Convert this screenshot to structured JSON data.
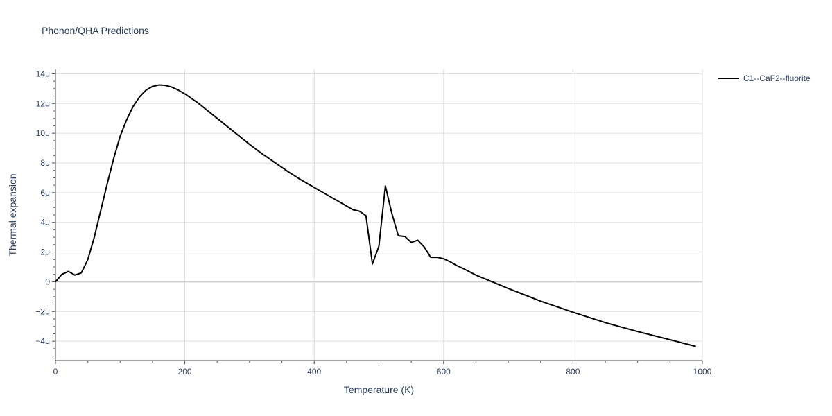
{
  "chart_data": {
    "type": "line",
    "title": "Phonon/QHA Predictions",
    "xlabel": "Temperature (K)",
    "ylabel": "Thermal expansion",
    "xlim": [
      0,
      1000
    ],
    "ylim": [
      -5.3,
      14.3
    ],
    "x_ticks": [
      0,
      200,
      400,
      600,
      800,
      1000
    ],
    "x_tick_labels": [
      "0",
      "200",
      "400",
      "600",
      "800",
      "1000"
    ],
    "y_ticks": [
      -4,
      -2,
      0,
      2,
      4,
      6,
      8,
      10,
      12,
      14
    ],
    "y_tick_labels": [
      "−4μ",
      "−2μ",
      "0",
      "2μ",
      "4μ",
      "6μ",
      "8μ",
      "10μ",
      "12μ",
      "14μ"
    ],
    "grid": true,
    "legend_position": "top-right",
    "series": [
      {
        "name": "C1--CaF2--fluorite",
        "color": "#000000",
        "x": [
          0,
          10,
          20,
          30,
          40,
          50,
          60,
          70,
          80,
          90,
          100,
          110,
          120,
          130,
          140,
          150,
          160,
          170,
          180,
          190,
          200,
          220,
          240,
          260,
          280,
          300,
          320,
          340,
          360,
          380,
          400,
          420,
          440,
          460,
          470,
          480,
          490,
          500,
          510,
          520,
          530,
          540,
          550,
          560,
          570,
          580,
          590,
          600,
          610,
          620,
          630,
          650,
          700,
          750,
          800,
          850,
          900,
          950,
          990
        ],
        "y": [
          0,
          0.5,
          0.7,
          0.45,
          0.6,
          1.5,
          3.0,
          4.8,
          6.6,
          8.3,
          9.8,
          10.9,
          11.8,
          12.45,
          12.9,
          13.15,
          13.25,
          13.22,
          13.1,
          12.9,
          12.65,
          12.05,
          11.35,
          10.65,
          9.95,
          9.25,
          8.6,
          8.0,
          7.4,
          6.85,
          6.35,
          5.85,
          5.35,
          4.85,
          4.75,
          4.45,
          1.2,
          2.4,
          6.45,
          4.6,
          3.1,
          3.05,
          2.65,
          2.8,
          2.35,
          1.65,
          1.65,
          1.55,
          1.35,
          1.1,
          0.9,
          0.45,
          -0.45,
          -1.3,
          -2.05,
          -2.75,
          -3.35,
          -3.9,
          -4.35
        ]
      }
    ]
  }
}
